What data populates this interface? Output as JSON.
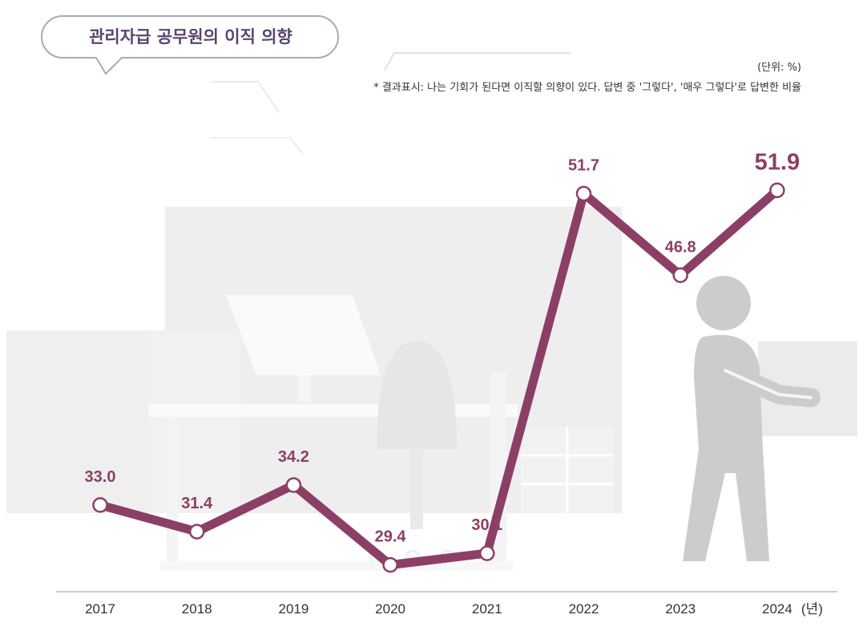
{
  "chart_data": {
    "type": "line",
    "title": "관리자급 공무원의 이직 의향",
    "unit_note": "(단위: %)",
    "footnote": "* 결과표시: 나는 기회가 된다면 이직할 의향이 있다. 답변 중 '그렇다', '매우 그렇다'로 답변한 비율",
    "x_unit": "(년)",
    "categories": [
      "2017",
      "2018",
      "2019",
      "2020",
      "2021",
      "2022",
      "2023",
      "2024"
    ],
    "series": [
      {
        "values": [
          33.0,
          31.4,
          34.2,
          29.4,
          30.1,
          51.7,
          46.8,
          51.9
        ],
        "labels": [
          "33.0",
          "31.4",
          "34.2",
          "29.4",
          "30.1",
          "51.7",
          "46.8",
          "51.9"
        ]
      }
    ],
    "ylim": [
      25,
      55
    ],
    "grid": false,
    "highlight_last": true,
    "colors": {
      "line": "#8C3F66",
      "label": "#8C3F66",
      "title": "#5A4470",
      "background_art": "#EDEDED",
      "axis": "#BBBBBB"
    }
  }
}
